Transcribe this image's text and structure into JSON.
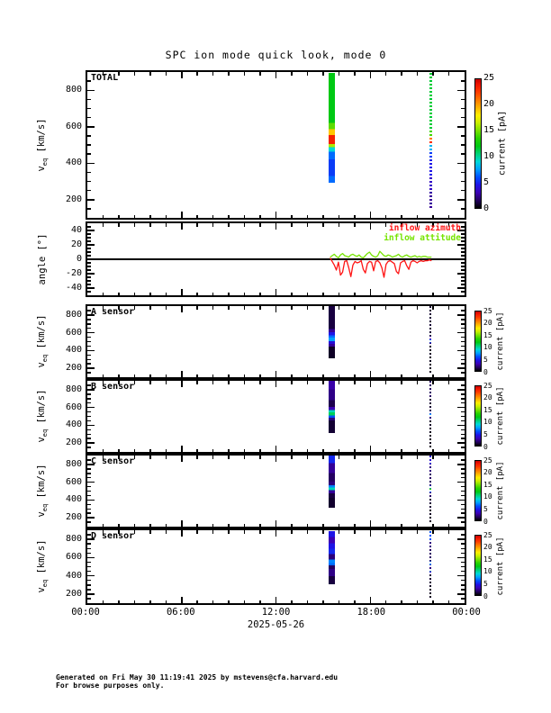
{
  "page": {
    "title": "SPC ion mode quick look, mode 0",
    "date_label": "2025-05-26",
    "footer_line1": "Generated on Fri May 30 11:19:41 2025 by mstevens@cfa.harvard.edu",
    "footer_line2": "For browse purposes only."
  },
  "time_axis": {
    "lim_hours": [
      0,
      24
    ],
    "major_step": 6,
    "minor_step": 1,
    "labels": [
      "00:00",
      "06:00",
      "12:00",
      "18:00",
      "00:00"
    ]
  },
  "colors": {
    "background": "#ffffff",
    "axis": "#000000",
    "colormap_anchors": [
      [
        0,
        "#000000"
      ],
      [
        1.5,
        "#240060"
      ],
      [
        3,
        "#3c00b4"
      ],
      [
        4.5,
        "#1e14e6"
      ],
      [
        6,
        "#0050ff"
      ],
      [
        7.5,
        "#00a0ff"
      ],
      [
        9,
        "#00d8d8"
      ],
      [
        10.5,
        "#00d278"
      ],
      [
        12,
        "#00c814"
      ],
      [
        13.5,
        "#28d200"
      ],
      [
        15,
        "#78e100"
      ],
      [
        16.5,
        "#c8ee00"
      ],
      [
        18,
        "#ffee00"
      ],
      [
        19.5,
        "#ffb400"
      ],
      [
        21,
        "#ff7800"
      ],
      [
        22.5,
        "#ff3c00"
      ],
      [
        24,
        "#ee1400"
      ],
      [
        25,
        "#c80000"
      ]
    ]
  },
  "chart_data": [
    {
      "type": "heatmap",
      "label": "TOTAL",
      "ylabel_base": "v",
      "ylabel_sub": "eq",
      "ylabel_unit": " [km/s]",
      "yticks": [
        200,
        400,
        600,
        800
      ],
      "ylim": [
        100,
        900
      ],
      "y_minor_step": 50,
      "colorbar": {
        "label": "current [pA]",
        "ticks": [
          0,
          5,
          10,
          15,
          20,
          25
        ],
        "lim": [
          0,
          25
        ]
      },
      "events": [
        {
          "time_hours": 15.55,
          "duration_hours": 0.36,
          "style": "solid",
          "segments": [
            [
              895,
              620,
              12
            ],
            [
              620,
              585,
              14.5
            ],
            [
              585,
              555,
              19
            ],
            [
              555,
              505,
              23.5
            ],
            [
              505,
              488,
              16
            ],
            [
              488,
              462,
              9
            ],
            [
              462,
              420,
              6.5
            ],
            [
              420,
              330,
              5.5
            ],
            [
              330,
              292,
              6.5
            ]
          ]
        },
        {
          "time_hours": 21.85,
          "duration_hours": 0.12,
          "style": "dotted",
          "segments": [
            [
              895,
              590,
              11.5
            ],
            [
              590,
              545,
              14
            ],
            [
              545,
              520,
              21
            ],
            [
              520,
              500,
              23
            ],
            [
              500,
              470,
              8
            ],
            [
              470,
              420,
              5.5
            ],
            [
              420,
              330,
              4.5
            ],
            [
              330,
              240,
              3.5
            ],
            [
              240,
              150,
              2.5
            ]
          ]
        }
      ]
    },
    {
      "type": "line",
      "ylabel": "angle [°]",
      "yticks": [
        -40,
        -20,
        0,
        20,
        40
      ],
      "ylim": [
        -50,
        50
      ],
      "y_minor_step": 5,
      "zero_line": true,
      "series": [
        {
          "name": "inflow azimuth",
          "color": "#ff1414",
          "x_range_hours": [
            15.45,
            21.9
          ],
          "y": [
            2,
            -3,
            -8,
            -15,
            -4,
            -22,
            -18,
            -3,
            -2,
            -12,
            -24,
            -8,
            -3,
            -5,
            -4,
            -2,
            -14,
            -19,
            -6,
            -3,
            -4,
            -16,
            -3,
            -2,
            -5,
            -12,
            -25,
            -7,
            -3,
            -2,
            -4,
            -6,
            -17,
            -20,
            -5,
            -3,
            -2,
            -9,
            -14,
            -4,
            -2,
            -3,
            -5,
            -3,
            -2,
            -3,
            -2,
            -2,
            -1,
            -2
          ]
        },
        {
          "name": "inflow attitude",
          "color": "#76e400",
          "x_range_hours": [
            15.45,
            21.9
          ],
          "y": [
            3,
            5,
            7,
            4,
            2,
            6,
            8,
            5,
            4,
            3,
            6,
            7,
            5,
            4,
            6,
            3,
            2,
            5,
            8,
            10,
            6,
            4,
            3,
            5,
            11,
            8,
            5,
            4,
            6,
            5,
            3,
            4,
            5,
            7,
            4,
            3,
            5,
            6,
            4,
            3,
            4,
            5,
            3,
            4,
            3,
            4,
            4,
            3,
            3,
            3
          ]
        }
      ]
    },
    {
      "type": "heatmap",
      "label": "A sensor",
      "ylabel_base": "v",
      "ylabel_sub": "eq",
      "ylabel_unit": " [km/s]",
      "yticks": [
        200,
        400,
        600,
        800
      ],
      "ylim": [
        100,
        900
      ],
      "y_minor_step": 50,
      "colorbar": {
        "label": "current [pA]",
        "ticks": [
          0,
          5,
          10,
          15,
          20,
          25
        ],
        "lim": [
          0,
          25
        ]
      },
      "events": [
        {
          "time_hours": 15.55,
          "duration_hours": 0.36,
          "style": "solid",
          "segments": [
            [
              895,
              640,
              1
            ],
            [
              640,
              600,
              2.5
            ],
            [
              600,
              565,
              4.5
            ],
            [
              565,
              540,
              6.5
            ],
            [
              540,
              500,
              7.5
            ],
            [
              500,
              470,
              4
            ],
            [
              470,
              440,
              2.5
            ],
            [
              440,
              310,
              0.6
            ]
          ]
        },
        {
          "time_hours": 21.85,
          "duration_hours": 0.1,
          "style": "dotted",
          "segments": [
            [
              895,
              560,
              0.8
            ],
            [
              560,
              520,
              3
            ],
            [
              520,
              490,
              6.5
            ],
            [
              490,
              450,
              2
            ],
            [
              450,
              330,
              0.6
            ],
            [
              330,
              150,
              0.4
            ]
          ]
        }
      ]
    },
    {
      "type": "heatmap",
      "label": "B sensor",
      "ylabel_base": "v",
      "ylabel_sub": "eq",
      "ylabel_unit": " [km/s]",
      "yticks": [
        200,
        400,
        600,
        800
      ],
      "ylim": [
        100,
        900
      ],
      "y_minor_step": 50,
      "colorbar": {
        "label": "current [pA]",
        "ticks": [
          0,
          5,
          10,
          15,
          20,
          25
        ],
        "lim": [
          0,
          25
        ]
      },
      "events": [
        {
          "time_hours": 15.55,
          "duration_hours": 0.36,
          "style": "solid",
          "segments": [
            [
              895,
              800,
              2.8
            ],
            [
              800,
              680,
              2.2
            ],
            [
              680,
              600,
              1.2
            ],
            [
              600,
              565,
              3
            ],
            [
              565,
              540,
              9.5
            ],
            [
              540,
              505,
              11
            ],
            [
              505,
              480,
              6
            ],
            [
              480,
              450,
              2
            ],
            [
              450,
              310,
              0.8
            ]
          ]
        },
        {
          "time_hours": 21.85,
          "duration_hours": 0.1,
          "style": "dotted",
          "segments": [
            [
              895,
              700,
              1.5
            ],
            [
              700,
              560,
              0.8
            ],
            [
              560,
              530,
              3
            ],
            [
              530,
              500,
              7.5
            ],
            [
              500,
              460,
              2
            ],
            [
              460,
              330,
              0.6
            ],
            [
              330,
              150,
              0.4
            ]
          ]
        }
      ]
    },
    {
      "type": "heatmap",
      "label": "C sensor",
      "ylabel_base": "v",
      "ylabel_sub": "eq",
      "ylabel_unit": " [km/s]",
      "yticks": [
        200,
        400,
        600,
        800
      ],
      "ylim": [
        100,
        900
      ],
      "y_minor_step": 50,
      "colorbar": {
        "label": "current [pA]",
        "ticks": [
          0,
          5,
          10,
          15,
          20,
          25
        ],
        "lim": [
          0,
          25
        ]
      },
      "events": [
        {
          "time_hours": 15.55,
          "duration_hours": 0.36,
          "style": "solid",
          "segments": [
            [
              895,
              810,
              5
            ],
            [
              810,
              700,
              2.5
            ],
            [
              700,
              600,
              1.5
            ],
            [
              600,
              560,
              2
            ],
            [
              560,
              535,
              7
            ],
            [
              535,
              505,
              9.5
            ],
            [
              505,
              470,
              2.5
            ],
            [
              470,
              420,
              1
            ],
            [
              420,
              310,
              0.7
            ]
          ]
        },
        {
          "time_hours": 21.85,
          "duration_hours": 0.1,
          "style": "dotted",
          "segments": [
            [
              895,
              800,
              4
            ],
            [
              800,
              700,
              2
            ],
            [
              700,
              560,
              1.5
            ],
            [
              560,
              530,
              6.5
            ],
            [
              530,
              505,
              13
            ],
            [
              505,
              480,
              6
            ],
            [
              480,
              420,
              1.5
            ],
            [
              420,
              300,
              0.8
            ],
            [
              300,
              150,
              0.5
            ]
          ]
        }
      ]
    },
    {
      "type": "heatmap",
      "label": "D sensor",
      "ylabel_base": "v",
      "ylabel_sub": "eq",
      "ylabel_unit": " [km/s]",
      "yticks": [
        200,
        400,
        600,
        800
      ],
      "ylim": [
        100,
        900
      ],
      "y_minor_step": 50,
      "colorbar": {
        "label": "current [pA]",
        "ticks": [
          0,
          5,
          10,
          15,
          20,
          25
        ],
        "lim": [
          0,
          25
        ]
      },
      "events": [
        {
          "time_hours": 15.55,
          "duration_hours": 0.36,
          "style": "solid",
          "segments": [
            [
              895,
              830,
              4.5
            ],
            [
              830,
              760,
              3
            ],
            [
              760,
              700,
              4.5
            ],
            [
              700,
              640,
              5
            ],
            [
              640,
              580,
              2
            ],
            [
              580,
              545,
              7
            ],
            [
              545,
              520,
              6.5
            ],
            [
              520,
              480,
              1.5
            ],
            [
              480,
              400,
              2.2
            ],
            [
              400,
              310,
              1
            ]
          ]
        },
        {
          "time_hours": 21.85,
          "duration_hours": 0.1,
          "style": "dotted",
          "segments": [
            [
              895,
              790,
              6
            ],
            [
              790,
              700,
              2
            ],
            [
              700,
              560,
              1.5
            ],
            [
              560,
              520,
              7
            ],
            [
              520,
              480,
              2
            ],
            [
              480,
              455,
              10
            ],
            [
              455,
              420,
              4
            ],
            [
              420,
              300,
              0.8
            ],
            [
              300,
              150,
              0.5
            ]
          ]
        }
      ]
    }
  ]
}
